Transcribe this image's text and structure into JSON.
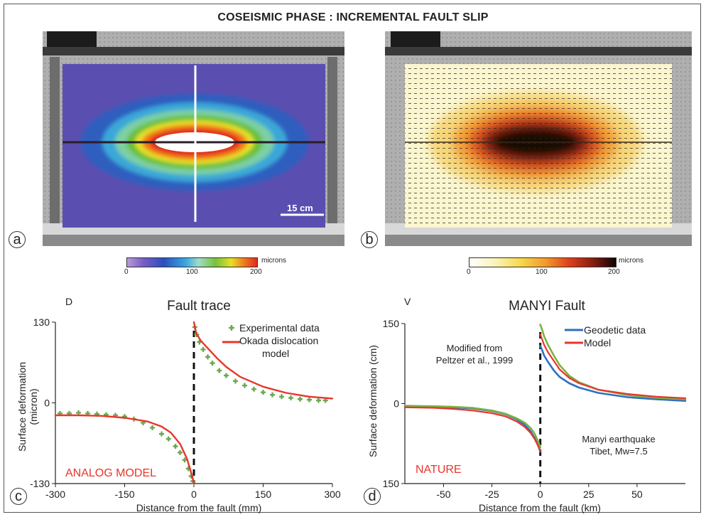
{
  "title": "COSEISMIC PHASE : INCREMENTAL FAULT SLIP",
  "panel_a": {
    "letter": "a",
    "scale_bar": "15 cm",
    "colorbar": {
      "ticks": [
        "0",
        "100",
        "200"
      ],
      "unit": "microns"
    }
  },
  "panel_b": {
    "letter": "b",
    "colorbar": {
      "ticks": [
        "0",
        "100",
        "200"
      ],
      "unit": "microns"
    }
  },
  "colors": {
    "experimental": "#6aa84f",
    "model": "#e8352b",
    "geodetic_blue": "#2f6fc0",
    "geodetic_green": "#7bb241"
  },
  "chart_data": [
    {
      "type": "scatter",
      "letter": "c",
      "title": "Fault trace",
      "corner_label": "D",
      "xlabel": "Distance from the fault (mm)",
      "ylabel": "Surface deformation (micron)",
      "xlim": [
        -300,
        300
      ],
      "ylim": [
        -130,
        130
      ],
      "xticks": [
        "-300",
        "-150",
        "0",
        "150",
        "300"
      ],
      "yticks": [
        "130",
        "0",
        "-130"
      ],
      "region_label": "ANALOG MODEL",
      "legend": [
        "Experimental data",
        "Okada dislocation",
        "model"
      ],
      "fault_x": 0,
      "series": [
        {
          "name": "Experimental data",
          "x": [
            -290,
            -270,
            -250,
            -230,
            -210,
            -190,
            -170,
            -150,
            -130,
            -110,
            -90,
            -70,
            -55,
            -40,
            -30,
            -20,
            -12,
            -6,
            -2,
            2,
            6,
            12,
            20,
            30,
            40,
            55,
            70,
            90,
            110,
            130,
            150,
            170,
            190,
            210,
            230,
            250,
            270,
            285
          ],
          "y": [
            -17,
            -17,
            -16,
            -17,
            -18,
            -19,
            -20,
            -22,
            -26,
            -32,
            -40,
            -50,
            -58,
            -70,
            -80,
            -92,
            -106,
            -118,
            -126,
            122,
            110,
            98,
            86,
            74,
            64,
            52,
            44,
            35,
            28,
            22,
            17,
            13,
            10,
            8,
            6,
            5,
            4,
            4
          ]
        },
        {
          "name": "Okada dislocation model",
          "x": [
            -300,
            -250,
            -200,
            -150,
            -100,
            -70,
            -50,
            -30,
            -15,
            -5,
            0,
            0,
            5,
            15,
            30,
            50,
            70,
            100,
            150,
            200,
            250,
            300
          ],
          "y": [
            -20,
            -20,
            -21,
            -24,
            -30,
            -38,
            -48,
            -66,
            -90,
            -115,
            -130,
            130,
            112,
            100,
            88,
            72,
            58,
            42,
            26,
            16,
            10,
            7
          ]
        }
      ]
    },
    {
      "type": "line",
      "letter": "d",
      "title": "MANYI Fault",
      "corner_label": "V",
      "xlabel": "Distance from the fault (km)",
      "ylabel": "Surface deformation (cm)",
      "xlim": [
        -70,
        75
      ],
      "ylim": [
        -150,
        150
      ],
      "xticks": [
        "-50",
        "-25",
        "0",
        "25",
        "50"
      ],
      "yticks": [
        "150",
        "0",
        "150"
      ],
      "region_label": "NATURE",
      "legend": [
        "Geodetic data",
        "Model"
      ],
      "annotation_source": [
        "Modified from",
        "Peltzer et al., 1999"
      ],
      "annotation_event": [
        "Manyi earthquake",
        "Tibet, Mw=7.5"
      ],
      "fault_x": 0,
      "series": [
        {
          "name": "Geodetic data (blue)",
          "x": [
            -70,
            -55,
            -45,
            -35,
            -25,
            -18,
            -12,
            -8,
            -5,
            -3,
            -1,
            0,
            0,
            1,
            2,
            4,
            7,
            10,
            15,
            20,
            30,
            45,
            60,
            75
          ],
          "y": [
            -5,
            -6,
            -7,
            -9,
            -14,
            -20,
            -30,
            -40,
            -52,
            -64,
            -80,
            -90,
            108,
            100,
            90,
            78,
            62,
            50,
            38,
            30,
            20,
            12,
            8,
            5
          ]
        },
        {
          "name": "Geodetic data (green)",
          "x": [
            -70,
            -55,
            -45,
            -35,
            -25,
            -18,
            -12,
            -8,
            -5,
            -3,
            -1,
            0,
            0,
            1,
            2,
            4,
            7,
            10,
            15,
            20,
            30,
            45,
            60,
            75
          ],
          "y": [
            -4,
            -5,
            -6,
            -8,
            -13,
            -19,
            -28,
            -36,
            -46,
            -56,
            -72,
            -82,
            148,
            138,
            126,
            110,
            90,
            72,
            52,
            40,
            26,
            16,
            11,
            8
          ]
        },
        {
          "name": "Model",
          "x": [
            -70,
            -55,
            -45,
            -35,
            -25,
            -18,
            -12,
            -8,
            -5,
            -3,
            -1,
            0,
            0,
            1,
            2,
            4,
            7,
            10,
            15,
            20,
            30,
            45,
            60,
            75
          ],
          "y": [
            -7,
            -8,
            -10,
            -13,
            -18,
            -24,
            -34,
            -44,
            -55,
            -66,
            -80,
            -88,
            130,
            120,
            110,
            96,
            80,
            64,
            48,
            38,
            26,
            18,
            13,
            10
          ]
        }
      ]
    }
  ]
}
